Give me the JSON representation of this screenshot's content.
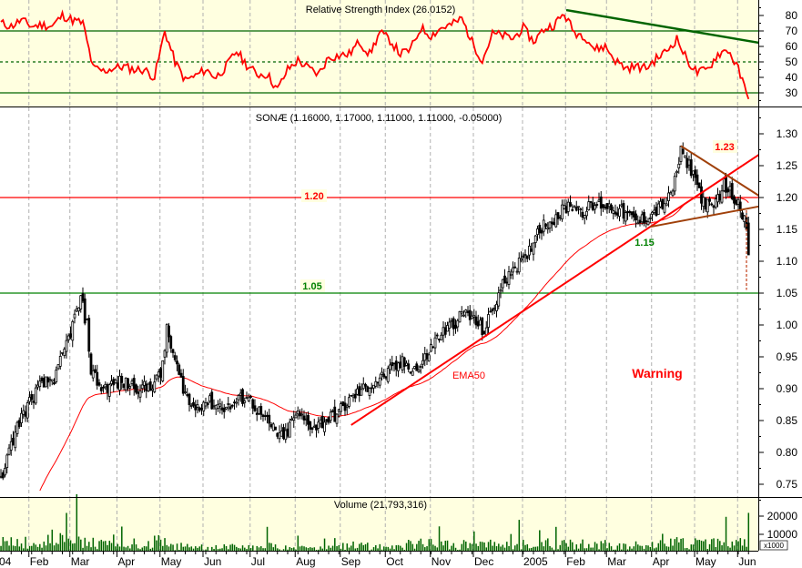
{
  "chart_data": [
    {
      "type": "line",
      "title": "Relative Strength Index (26.0152)",
      "ylim": [
        20,
        90
      ],
      "y_ticks": [
        30,
        40,
        50,
        60,
        70,
        80
      ],
      "reference_lines": [
        {
          "value": 70,
          "style": "solid"
        },
        {
          "value": 50,
          "style": "dashed"
        },
        {
          "value": 30,
          "style": "solid"
        }
      ],
      "sample_step_days": 5,
      "rsi_samples": [
        75,
        73,
        77,
        73,
        74,
        73,
        80,
        77,
        75,
        46,
        44,
        46,
        47,
        45,
        45,
        40,
        70,
        50,
        38,
        41,
        45,
        40,
        47,
        57,
        48,
        42,
        42,
        32,
        45,
        51,
        46,
        42,
        53,
        54,
        55,
        63,
        55,
        69,
        64,
        55,
        58,
        72,
        67,
        72,
        74,
        78,
        63,
        51,
        68,
        67,
        65,
        72,
        63,
        71,
        74,
        81,
        69,
        67,
        58,
        60,
        51,
        46,
        47,
        46,
        52,
        57,
        65,
        51,
        43,
        45,
        55,
        58,
        45,
        26
      ],
      "trendline": {
        "from": {
          "day": 276,
          "value": 83.5
        },
        "to": {
          "day": 370,
          "value": 62.4
        }
      },
      "colors": {
        "series": "#ff0000",
        "lines": "#006400",
        "background": "#ffffe0"
      }
    },
    {
      "type": "candlestick",
      "title": "SONÆ (1.16000, 1.17000, 1.11000, 1.11000, -0.05000)",
      "ylim": [
        0.72,
        1.34
      ],
      "y_ticks": [
        0.75,
        0.8,
        0.85,
        0.9,
        0.95,
        1.0,
        1.05,
        1.1,
        1.15,
        1.2,
        1.25,
        1.3
      ],
      "last": {
        "open": 1.16,
        "high": 1.17,
        "low": 1.11,
        "close": 1.11,
        "change": -0.05
      },
      "close_anchors": [
        [
          0,
          0.76
        ],
        [
          9,
          0.85
        ],
        [
          18,
          0.9
        ],
        [
          27,
          0.92
        ],
        [
          33,
          0.98
        ],
        [
          39,
          1.04
        ],
        [
          42,
          1.0
        ],
        [
          44,
          0.93
        ],
        [
          49,
          0.9
        ],
        [
          58,
          0.91
        ],
        [
          71,
          0.9
        ],
        [
          78,
          0.92
        ],
        [
          81,
          0.99
        ],
        [
          87,
          0.92
        ],
        [
          93,
          0.87
        ],
        [
          100,
          0.88
        ],
        [
          111,
          0.87
        ],
        [
          120,
          0.89
        ],
        [
          129,
          0.85
        ],
        [
          138,
          0.82
        ],
        [
          144,
          0.86
        ],
        [
          153,
          0.84
        ],
        [
          164,
          0.86
        ],
        [
          173,
          0.89
        ],
        [
          187,
          0.92
        ],
        [
          196,
          0.94
        ],
        [
          204,
          0.93
        ],
        [
          213,
          0.98
        ],
        [
          227,
          1.02
        ],
        [
          236,
          0.99
        ],
        [
          242,
          1.04
        ],
        [
          249,
          1.09
        ],
        [
          256,
          1.1
        ],
        [
          262,
          1.15
        ],
        [
          271,
          1.17
        ],
        [
          278,
          1.19
        ],
        [
          284,
          1.18
        ],
        [
          293,
          1.19
        ],
        [
          302,
          1.18
        ],
        [
          311,
          1.16
        ],
        [
          320,
          1.18
        ],
        [
          327,
          1.2
        ],
        [
          332,
          1.27
        ],
        [
          338,
          1.24
        ],
        [
          342,
          1.2
        ],
        [
          347,
          1.18
        ],
        [
          353,
          1.22
        ],
        [
          358,
          1.2
        ],
        [
          361,
          1.19
        ],
        [
          364,
          1.15
        ],
        [
          365,
          1.11
        ]
      ],
      "indicators": [
        {
          "name": "EMA50",
          "period": 50,
          "color": "#ff0000"
        }
      ],
      "levels": [
        {
          "value": 1.2,
          "label": "1.20",
          "color": "#ff0000"
        },
        {
          "value": 1.05,
          "label": "1.05",
          "color": "#008000"
        }
      ],
      "trendlines": [
        {
          "from": {
            "day": 171,
            "price": 0.843
          },
          "to": {
            "day": 370,
            "price": 1.267
          },
          "color": "#ff0000"
        },
        {
          "from": {
            "day": 332,
            "price": 1.281
          },
          "to": {
            "day": 370,
            "price": 1.203
          },
          "color": "#a0400a"
        },
        {
          "from": {
            "day": 317,
            "price": 1.154
          },
          "to": {
            "day": 370,
            "price": 1.186
          },
          "color": "#a0400a"
        }
      ],
      "annotations": {
        "ema_label": "EMA50",
        "warning": "Warning",
        "level_115": "1.15",
        "level_123": "1.23"
      }
    },
    {
      "type": "bar",
      "title": "Volume (21,793,316)",
      "unit_label": "x1000",
      "y_ticks": [
        10000,
        20000
      ],
      "last_volume_thousands": 21793,
      "sample_step_days": 5,
      "volume_samples_thousands": [
        9000,
        6000,
        4000,
        5000,
        7000,
        9000,
        12000,
        11000,
        8000,
        6000,
        5000,
        4000,
        3500,
        6000,
        5000,
        7000,
        6000,
        4000,
        3000,
        3500,
        3000,
        4000,
        3500,
        3000,
        3000,
        3500,
        4000,
        3000,
        2500,
        3000,
        2500,
        2500,
        3000,
        4000,
        4500,
        4000,
        3500,
        3500,
        3500,
        4000,
        5000,
        5500,
        6000,
        5000,
        4000,
        5000,
        6000,
        5500,
        5000,
        6000,
        5500,
        5000,
        5000,
        6000,
        5000,
        5500,
        5500,
        5000,
        5000,
        5000,
        4500,
        4500,
        5000,
        5500,
        5000,
        6000,
        7000,
        6000,
        5500,
        6000,
        5500,
        5000,
        6000,
        9000
      ],
      "color": "#006400"
    }
  ],
  "x_axis": {
    "labels": [
      {
        "label": "04",
        "day": 0
      },
      {
        "label": "Feb",
        "day": 15
      },
      {
        "label": "Mar",
        "day": 35
      },
      {
        "label": "Apr",
        "day": 58
      },
      {
        "label": "May",
        "day": 79
      },
      {
        "label": "Jun",
        "day": 100
      },
      {
        "label": "Jul",
        "day": 123
      },
      {
        "label": "Aug",
        "day": 145
      },
      {
        "label": "Sep",
        "day": 167
      },
      {
        "label": "Oct",
        "day": 189
      },
      {
        "label": "Nov",
        "day": 211
      },
      {
        "label": "Dec",
        "day": 232
      },
      {
        "label": "2005",
        "day": 256
      },
      {
        "label": "Feb",
        "day": 277
      },
      {
        "label": "Mar",
        "day": 297
      },
      {
        "label": "Apr",
        "day": 319
      },
      {
        "label": "May",
        "day": 340
      },
      {
        "label": "Jun",
        "day": 361
      }
    ]
  }
}
